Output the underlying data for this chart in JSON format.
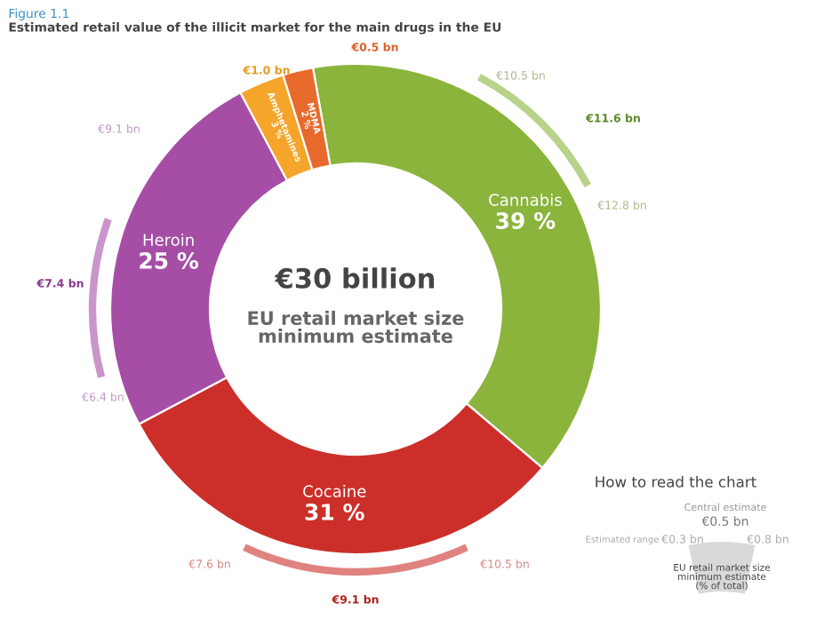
{
  "chart_data": {
    "type": "donut",
    "title": "Estimated retail value of the illicit market for the main drugs in the EU",
    "subtitle": "Figure 1.1",
    "categories": [
      "Cannabis",
      "Cocaine",
      "Heroin",
      "Amphetamines",
      "MDMA"
    ],
    "values": [
      39,
      31,
      25,
      3,
      2
    ],
    "value_labels": [
      "39 %",
      "31 %",
      "25 %",
      "3 %",
      "2 %"
    ],
    "colors": [
      "#8bb43c",
      "#cc2f2a",
      "#a64ea6",
      "#f4a52a",
      "#e8692c"
    ],
    "annotations": [
      "€30 billion",
      "EU retail market size\nminimum estimate",
      "€10.5 bn",
      "€11.6 bn",
      "€12.8 bn",
      "€7.6 bn",
      "€9.1 bn",
      "€10.5 bn",
      "€9.1 bn",
      "€7.4 bn",
      "€6.4 bn",
      "€1.0 bn",
      "€0.5 bn",
      "How to read the chart",
      "Central estimate",
      "€0.5 bn",
      "Estimated range",
      "€0.3 bn",
      "€0.8 bn",
      "EU retail market size\nminimum estimate\n(% of total)"
    ]
  }
}
